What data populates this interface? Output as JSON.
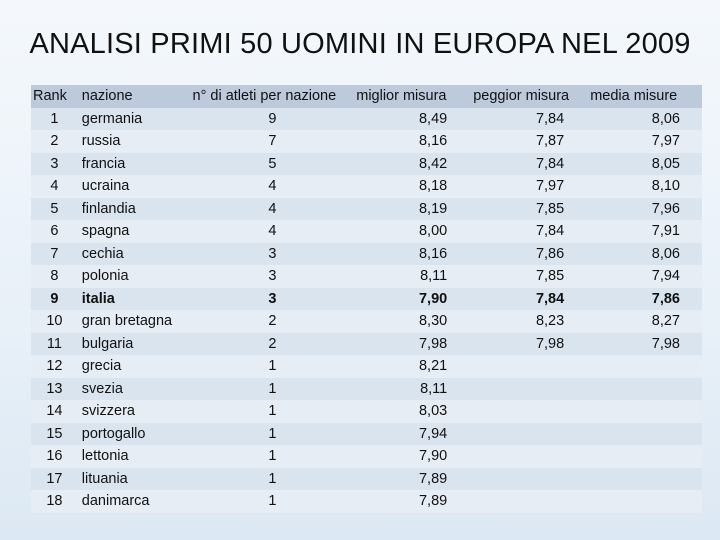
{
  "title": "ANALISI PRIMI 50 UOMINI IN EUROPA NEL 2009",
  "headers": {
    "rank": "Rank",
    "nation": "nazione",
    "athletes": "n° di atleti per nazione",
    "best": "miglior misura",
    "worst": "peggior misura",
    "avg": "media misure"
  },
  "rows": [
    {
      "rank": "1",
      "nation": "germania",
      "athletes": "9",
      "best": "8,49",
      "worst": "7,84",
      "avg": "8,06"
    },
    {
      "rank": "2",
      "nation": "russia",
      "athletes": "7",
      "best": "8,16",
      "worst": "7,87",
      "avg": "7,97"
    },
    {
      "rank": "3",
      "nation": "francia",
      "athletes": "5",
      "best": "8,42",
      "worst": "7,84",
      "avg": "8,05"
    },
    {
      "rank": "4",
      "nation": "ucraina",
      "athletes": "4",
      "best": "8,18",
      "worst": "7,97",
      "avg": "8,10"
    },
    {
      "rank": "5",
      "nation": "finlandia",
      "athletes": "4",
      "best": "8,19",
      "worst": "7,85",
      "avg": "7,96"
    },
    {
      "rank": "6",
      "nation": "spagna",
      "athletes": "4",
      "best": "8,00",
      "worst": "7,84",
      "avg": "7,91"
    },
    {
      "rank": "7",
      "nation": "cechia",
      "athletes": "3",
      "best": "8,16",
      "worst": "7,86",
      "avg": "8,06"
    },
    {
      "rank": "8",
      "nation": "polonia",
      "athletes": "3",
      "best": "8,11",
      "worst": "7,85",
      "avg": "7,94"
    },
    {
      "rank": "9",
      "nation": "italia",
      "athletes": "3",
      "best": "7,90",
      "worst": "7,84",
      "avg": "7,86",
      "bold": true
    },
    {
      "rank": "10",
      "nation": "gran bretagna",
      "athletes": "2",
      "best": "8,30",
      "worst": "8,23",
      "avg": "8,27"
    },
    {
      "rank": "11",
      "nation": "bulgaria",
      "athletes": "2",
      "best": "7,98",
      "worst": "7,98",
      "avg": "7,98"
    },
    {
      "rank": "12",
      "nation": "grecia",
      "athletes": "1",
      "best": "8,21",
      "worst": "",
      "avg": ""
    },
    {
      "rank": "13",
      "nation": "svezia",
      "athletes": "1",
      "best": "8,11",
      "worst": "",
      "avg": ""
    },
    {
      "rank": "14",
      "nation": "svizzera",
      "athletes": "1",
      "best": "8,03",
      "worst": "",
      "avg": ""
    },
    {
      "rank": "15",
      "nation": "portogallo",
      "athletes": "1",
      "best": "7,94",
      "worst": "",
      "avg": ""
    },
    {
      "rank": "16",
      "nation": "lettonia",
      "athletes": "1",
      "best": "7,90",
      "worst": "",
      "avg": ""
    },
    {
      "rank": "17",
      "nation": "lituania",
      "athletes": "1",
      "best": "7,89",
      "worst": "",
      "avg": ""
    },
    {
      "rank": "18",
      "nation": "danimarca",
      "athletes": "1",
      "best": "7,89",
      "worst": "",
      "avg": ""
    }
  ]
}
